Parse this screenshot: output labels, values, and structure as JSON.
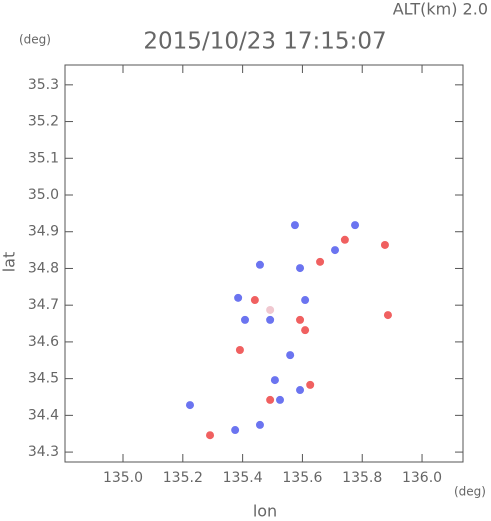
{
  "chart_data": {
    "type": "scatter",
    "title": "2015/10/23 17:15:07",
    "subtitle": "ALT(km) 2.0",
    "y_unit": "(deg)",
    "x_unit": "(deg)",
    "x_label": "lon",
    "y_label": "lat",
    "xlim": [
      134.806,
      136.137
    ],
    "ylim": [
      34.273,
      35.354
    ],
    "xticks": [
      {
        "value": 135.0,
        "label": "135.0"
      },
      135.2,
      135.4,
      135.6,
      135.8,
      {
        "value": 136.0,
        "label": "136.0"
      }
    ],
    "yticks": [
      34.3,
      34.4,
      34.5,
      34.6,
      34.7,
      34.8,
      34.9,
      {
        "value": 35.0,
        "label": "35.0"
      },
      35.1,
      35.2,
      35.3
    ],
    "series": [
      {
        "color": "#6b74f0",
        "x": [
          135.575,
          135.592,
          135.458,
          135.385,
          135.492,
          135.408,
          135.559,
          135.508,
          135.592,
          135.525,
          135.224,
          135.458,
          135.375,
          135.776,
          135.709,
          135.609
        ],
        "y": [
          34.918,
          34.801,
          34.81,
          34.72,
          34.66,
          34.66,
          34.564,
          34.496,
          34.469,
          34.442,
          34.428,
          34.374,
          34.36,
          34.918,
          34.85,
          34.714
        ]
      },
      {
        "color": "#f06060",
        "x": [
          135.742,
          135.876,
          135.609,
          135.391,
          135.592,
          135.441,
          135.626,
          135.492,
          135.886,
          135.659,
          135.291
        ],
        "y": [
          34.878,
          34.864,
          34.632,
          34.578,
          34.66,
          34.714,
          34.483,
          34.442,
          34.673,
          34.818,
          34.346
        ]
      },
      {
        "color": "#f0c8d0",
        "x": [
          135.492
        ],
        "y": [
          34.687
        ]
      }
    ]
  }
}
